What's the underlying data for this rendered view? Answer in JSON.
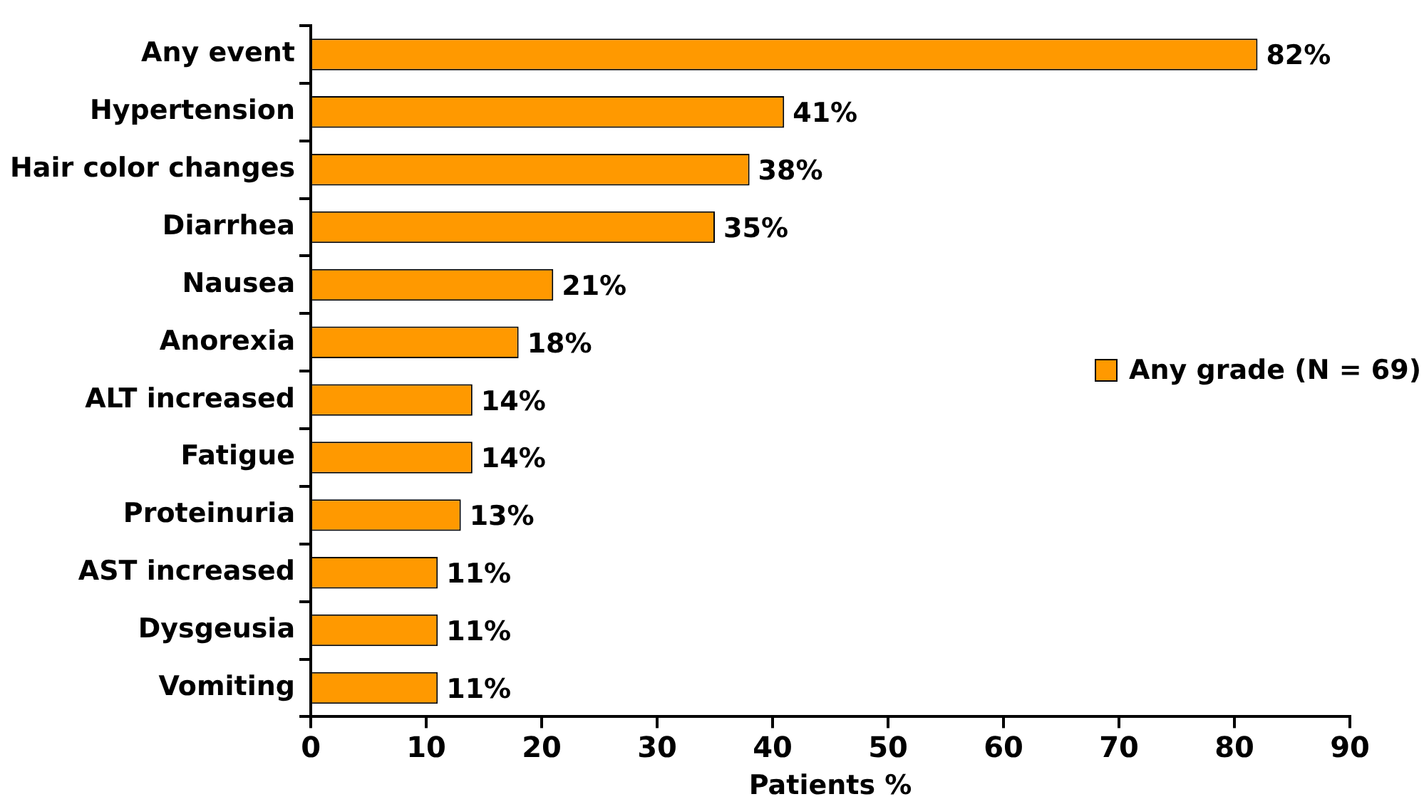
{
  "chart_data": {
    "type": "bar",
    "orientation": "horizontal",
    "xlabel": "Patients %",
    "categories": [
      "Any event",
      "Hypertension",
      "Hair color changes",
      "Diarrhea",
      "Nausea",
      "Anorexia",
      "ALT increased",
      "Fatigue",
      "Proteinuria",
      "AST increased",
      "Dysgeusia",
      "Vomiting"
    ],
    "series": [
      {
        "name": "Any grade (N = 69)",
        "color": "#ff9900",
        "values": [
          82,
          41,
          38,
          35,
          21,
          18,
          14,
          14,
          13,
          11,
          11,
          11
        ],
        "value_labels": [
          "82%",
          "41%",
          "38%",
          "35%",
          "21%",
          "18%",
          "14%",
          "14%",
          "13%",
          "11%",
          "11%",
          "11%"
        ]
      }
    ],
    "xlim": [
      0,
      90
    ],
    "xticks": [
      0,
      10,
      20,
      30,
      40,
      50,
      60,
      70,
      80,
      90
    ],
    "grid": false,
    "legend": "right"
  }
}
